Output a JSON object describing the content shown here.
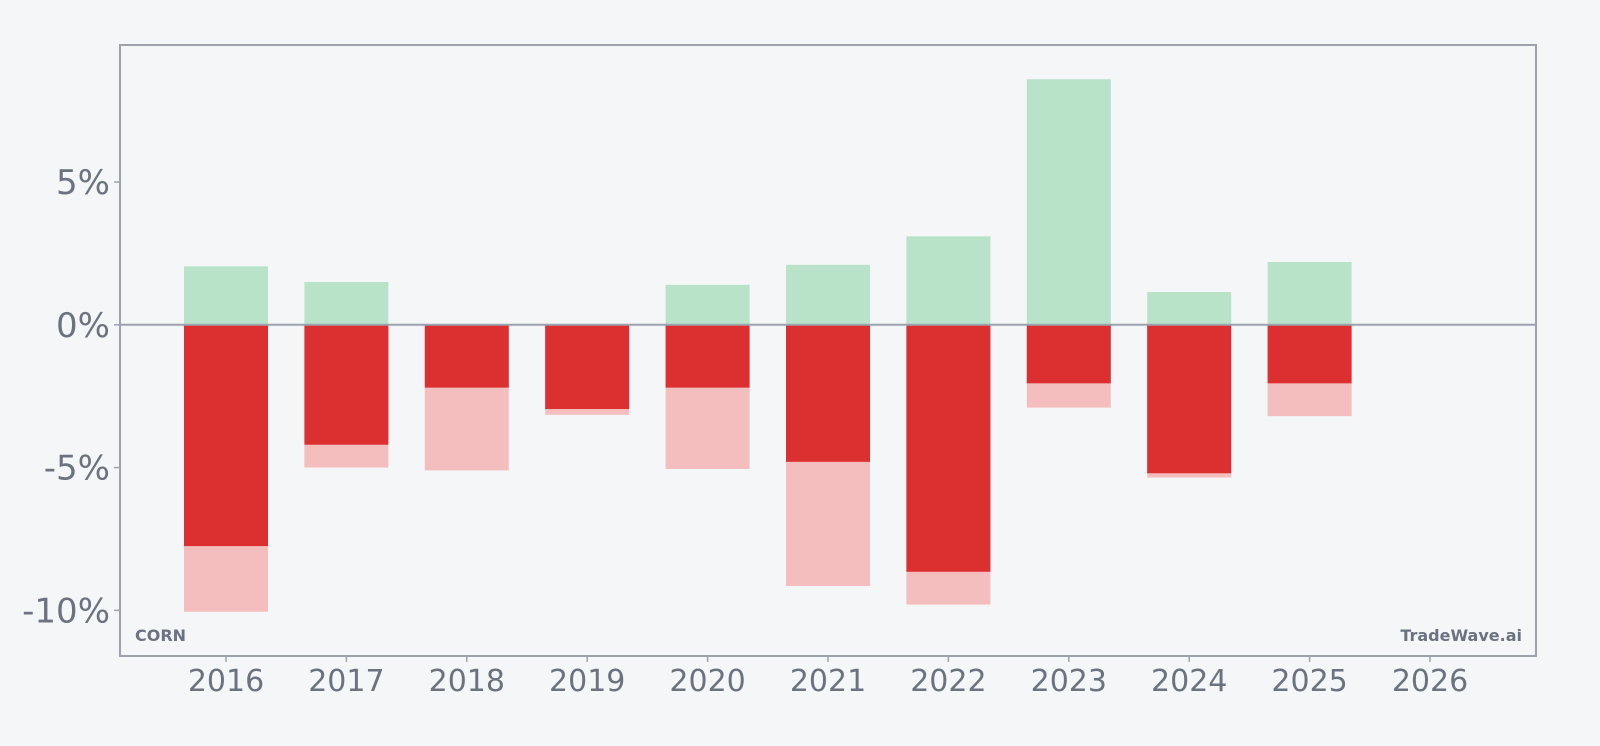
{
  "chart_data": {
    "type": "bar",
    "title": "",
    "xlabel": "",
    "ylabel": "",
    "symbol": "CORN",
    "watermark": "TradeWave.ai",
    "categories": [
      "2016",
      "2017",
      "2018",
      "2019",
      "2020",
      "2021",
      "2022",
      "2023",
      "2024",
      "2025",
      "2026"
    ],
    "series": [
      {
        "key": "max_gain",
        "values": [
          2.05,
          1.5,
          0.0,
          0.0,
          1.4,
          2.1,
          3.1,
          8.6,
          1.15,
          2.2,
          null
        ]
      },
      {
        "key": "max_drawdown",
        "values": [
          -10.05,
          -5.0,
          -5.1,
          -3.15,
          -5.05,
          -9.15,
          -9.8,
          -2.9,
          -5.35,
          -3.2,
          null
        ]
      },
      {
        "key": "return",
        "values": [
          -7.75,
          -4.2,
          -2.2,
          -2.95,
          -2.2,
          -4.8,
          -8.65,
          -2.05,
          -5.2,
          -2.05,
          null
        ]
      }
    ],
    "ylim": [
      -11.6,
      9.8
    ],
    "yticks": [
      -10,
      -5,
      0,
      5
    ],
    "ytick_labels": [
      "-10%",
      "-5%",
      "0%",
      "5%"
    ],
    "grid": false,
    "colors": {
      "gain": "#b8e3c9",
      "drawdown": "#f4bebe",
      "return_negative": "#dc2f2f",
      "return_positive": "#2e9e5b",
      "zero_line": "#9ca3af",
      "frame": "#9ca3af",
      "text": "#6b7280",
      "background": "#f4f6f8"
    }
  }
}
